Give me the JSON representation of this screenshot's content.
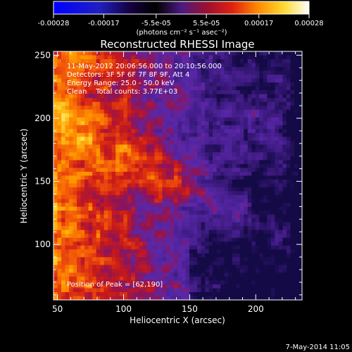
{
  "chart_data": {
    "type": "heatmap",
    "title": "Reconstructed RHESSI Image",
    "xlabel": "Heliocentric X (arcsec)",
    "ylabel": "Heliocentric Y (arcsec)",
    "xlim": [
      47,
      235
    ],
    "ylim": [
      56,
      253
    ],
    "x_ticks": [
      50,
      100,
      150,
      200
    ],
    "y_ticks": [
      100,
      150,
      200,
      250
    ],
    "colorbar": {
      "min": -0.00028,
      "max": 0.00028,
      "tick_values": [
        -0.00028,
        -0.00017,
        -5.5e-05,
        5.5e-05,
        0.00017,
        0.00028
      ],
      "tick_labels": [
        "-0.00028",
        "-0.00017",
        "-5.5e-05",
        "5.5e-05",
        "0.00017",
        "0.00028"
      ],
      "unit_label": "(photons cm⁻² s⁻¹ asec⁻²)",
      "colormap": "blue-black-purple-red-orange-yellow-white"
    },
    "info_lines": [
      "11-May-2012 20:06:56.000 to 20:10:56.000",
      "Detectors: 3F 5F 6F 7F 8F 9F, Att 4",
      "Energy Range: 25.0 - 50.0 keV",
      "Clean    Total counts: 3.77E+03"
    ],
    "peak_label": "Position of Peak = [62,190]",
    "peak_position": [
      62,
      190
    ],
    "grid": false
  },
  "footer": {
    "timestamp": "7-May-2014 11:05"
  },
  "colors": {
    "background": "#000000",
    "text": "#ffffff",
    "map_low": "#5a20a0",
    "map_high": "#fff5a0"
  }
}
